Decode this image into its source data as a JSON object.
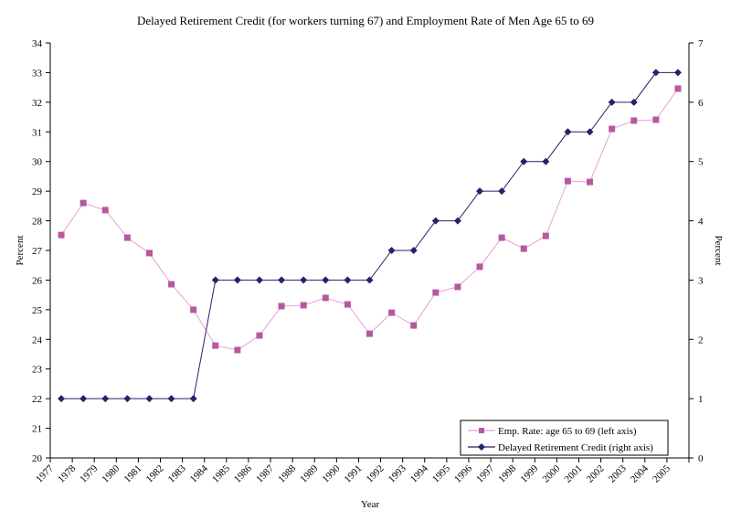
{
  "chart_data": {
    "type": "line",
    "title": "Delayed Retirement Credit (for workers turning 67) and Employment Rate of Men Age 65 to 69",
    "xlabel": "Year",
    "ylabel_left": "Percent",
    "ylabel_right": "Percent",
    "ylim_left": [
      20,
      34
    ],
    "ylim_right": [
      0,
      7
    ],
    "yticks_left": [
      20,
      21,
      22,
      23,
      24,
      25,
      26,
      27,
      28,
      29,
      30,
      31,
      32,
      33,
      34
    ],
    "yticks_right": [
      0,
      1,
      2,
      3,
      4,
      5,
      6,
      7
    ],
    "grid": false,
    "legend_position": "bottom-right",
    "categories": [
      "1977",
      "1978",
      "1979",
      "1980",
      "1981",
      "1982",
      "1983",
      "1984",
      "1985",
      "1986",
      "1987",
      "1988",
      "1989",
      "1990",
      "1991",
      "1992",
      "1993",
      "1994",
      "1995",
      "1996",
      "1997",
      "1998",
      "1999",
      "2000",
      "2001",
      "2002",
      "2003",
      "2004",
      "2005"
    ],
    "series": [
      {
        "name": "Emp. Rate: age 65 to 69 (left axis)",
        "axis": "left",
        "color": "#b5599f",
        "marker": "square",
        "values": [
          27.52,
          28.6,
          28.36,
          27.43,
          26.91,
          25.86,
          25.0,
          23.79,
          23.64,
          24.13,
          25.12,
          25.15,
          25.4,
          25.18,
          24.19,
          24.9,
          24.47,
          25.58,
          25.77,
          26.45,
          27.43,
          27.06,
          27.49,
          29.34,
          29.31,
          31.1,
          31.38,
          31.41,
          32.46
        ]
      },
      {
        "name": "Delayed Retirement Credit (right axis)",
        "axis": "right",
        "color": "#2b1f6e",
        "marker": "diamond",
        "values": [
          1,
          1,
          1,
          1,
          1,
          1,
          1,
          3,
          3,
          3,
          3,
          3,
          3,
          3,
          3,
          3.5,
          3.5,
          4,
          4,
          4.5,
          4.5,
          5,
          5,
          5.5,
          5.5,
          6,
          6,
          6.5,
          6.5
        ]
      }
    ]
  }
}
